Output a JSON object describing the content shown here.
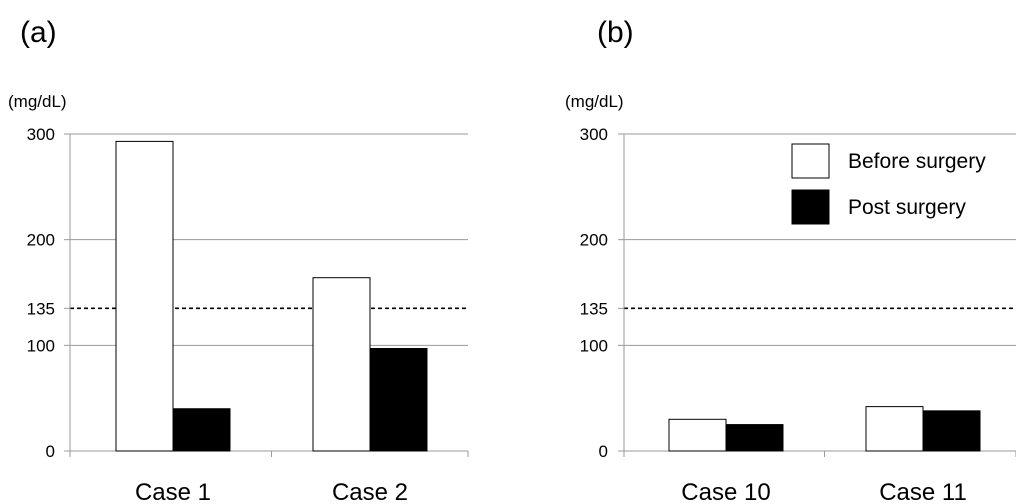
{
  "chart_data": [
    {
      "type": "bar",
      "panel_label": "(a)",
      "unit_label": "(mg/dL)",
      "categories": [
        "Case 1",
        "Case 2"
      ],
      "series": [
        {
          "name": "Before surgery",
          "values": [
            293,
            164
          ],
          "color": "#ffffff"
        },
        {
          "name": "Post surgery",
          "values": [
            40,
            97
          ],
          "color": "#000000"
        }
      ],
      "ylim": [
        0,
        300
      ],
      "yticks": [
        0,
        100,
        135,
        200,
        300
      ],
      "threshold": 135,
      "legend": false
    },
    {
      "type": "bar",
      "panel_label": "(b)",
      "unit_label": "(mg/dL)",
      "categories": [
        "Case 10",
        "Case 11"
      ],
      "series": [
        {
          "name": "Before surgery",
          "values": [
            30,
            42
          ],
          "color": "#ffffff"
        },
        {
          "name": "Post surgery",
          "values": [
            25,
            38
          ],
          "color": "#000000"
        }
      ],
      "ylim": [
        0,
        300
      ],
      "yticks": [
        0,
        100,
        135,
        200,
        300
      ],
      "threshold": 135,
      "legend": true,
      "legend_position": "top-right"
    }
  ]
}
